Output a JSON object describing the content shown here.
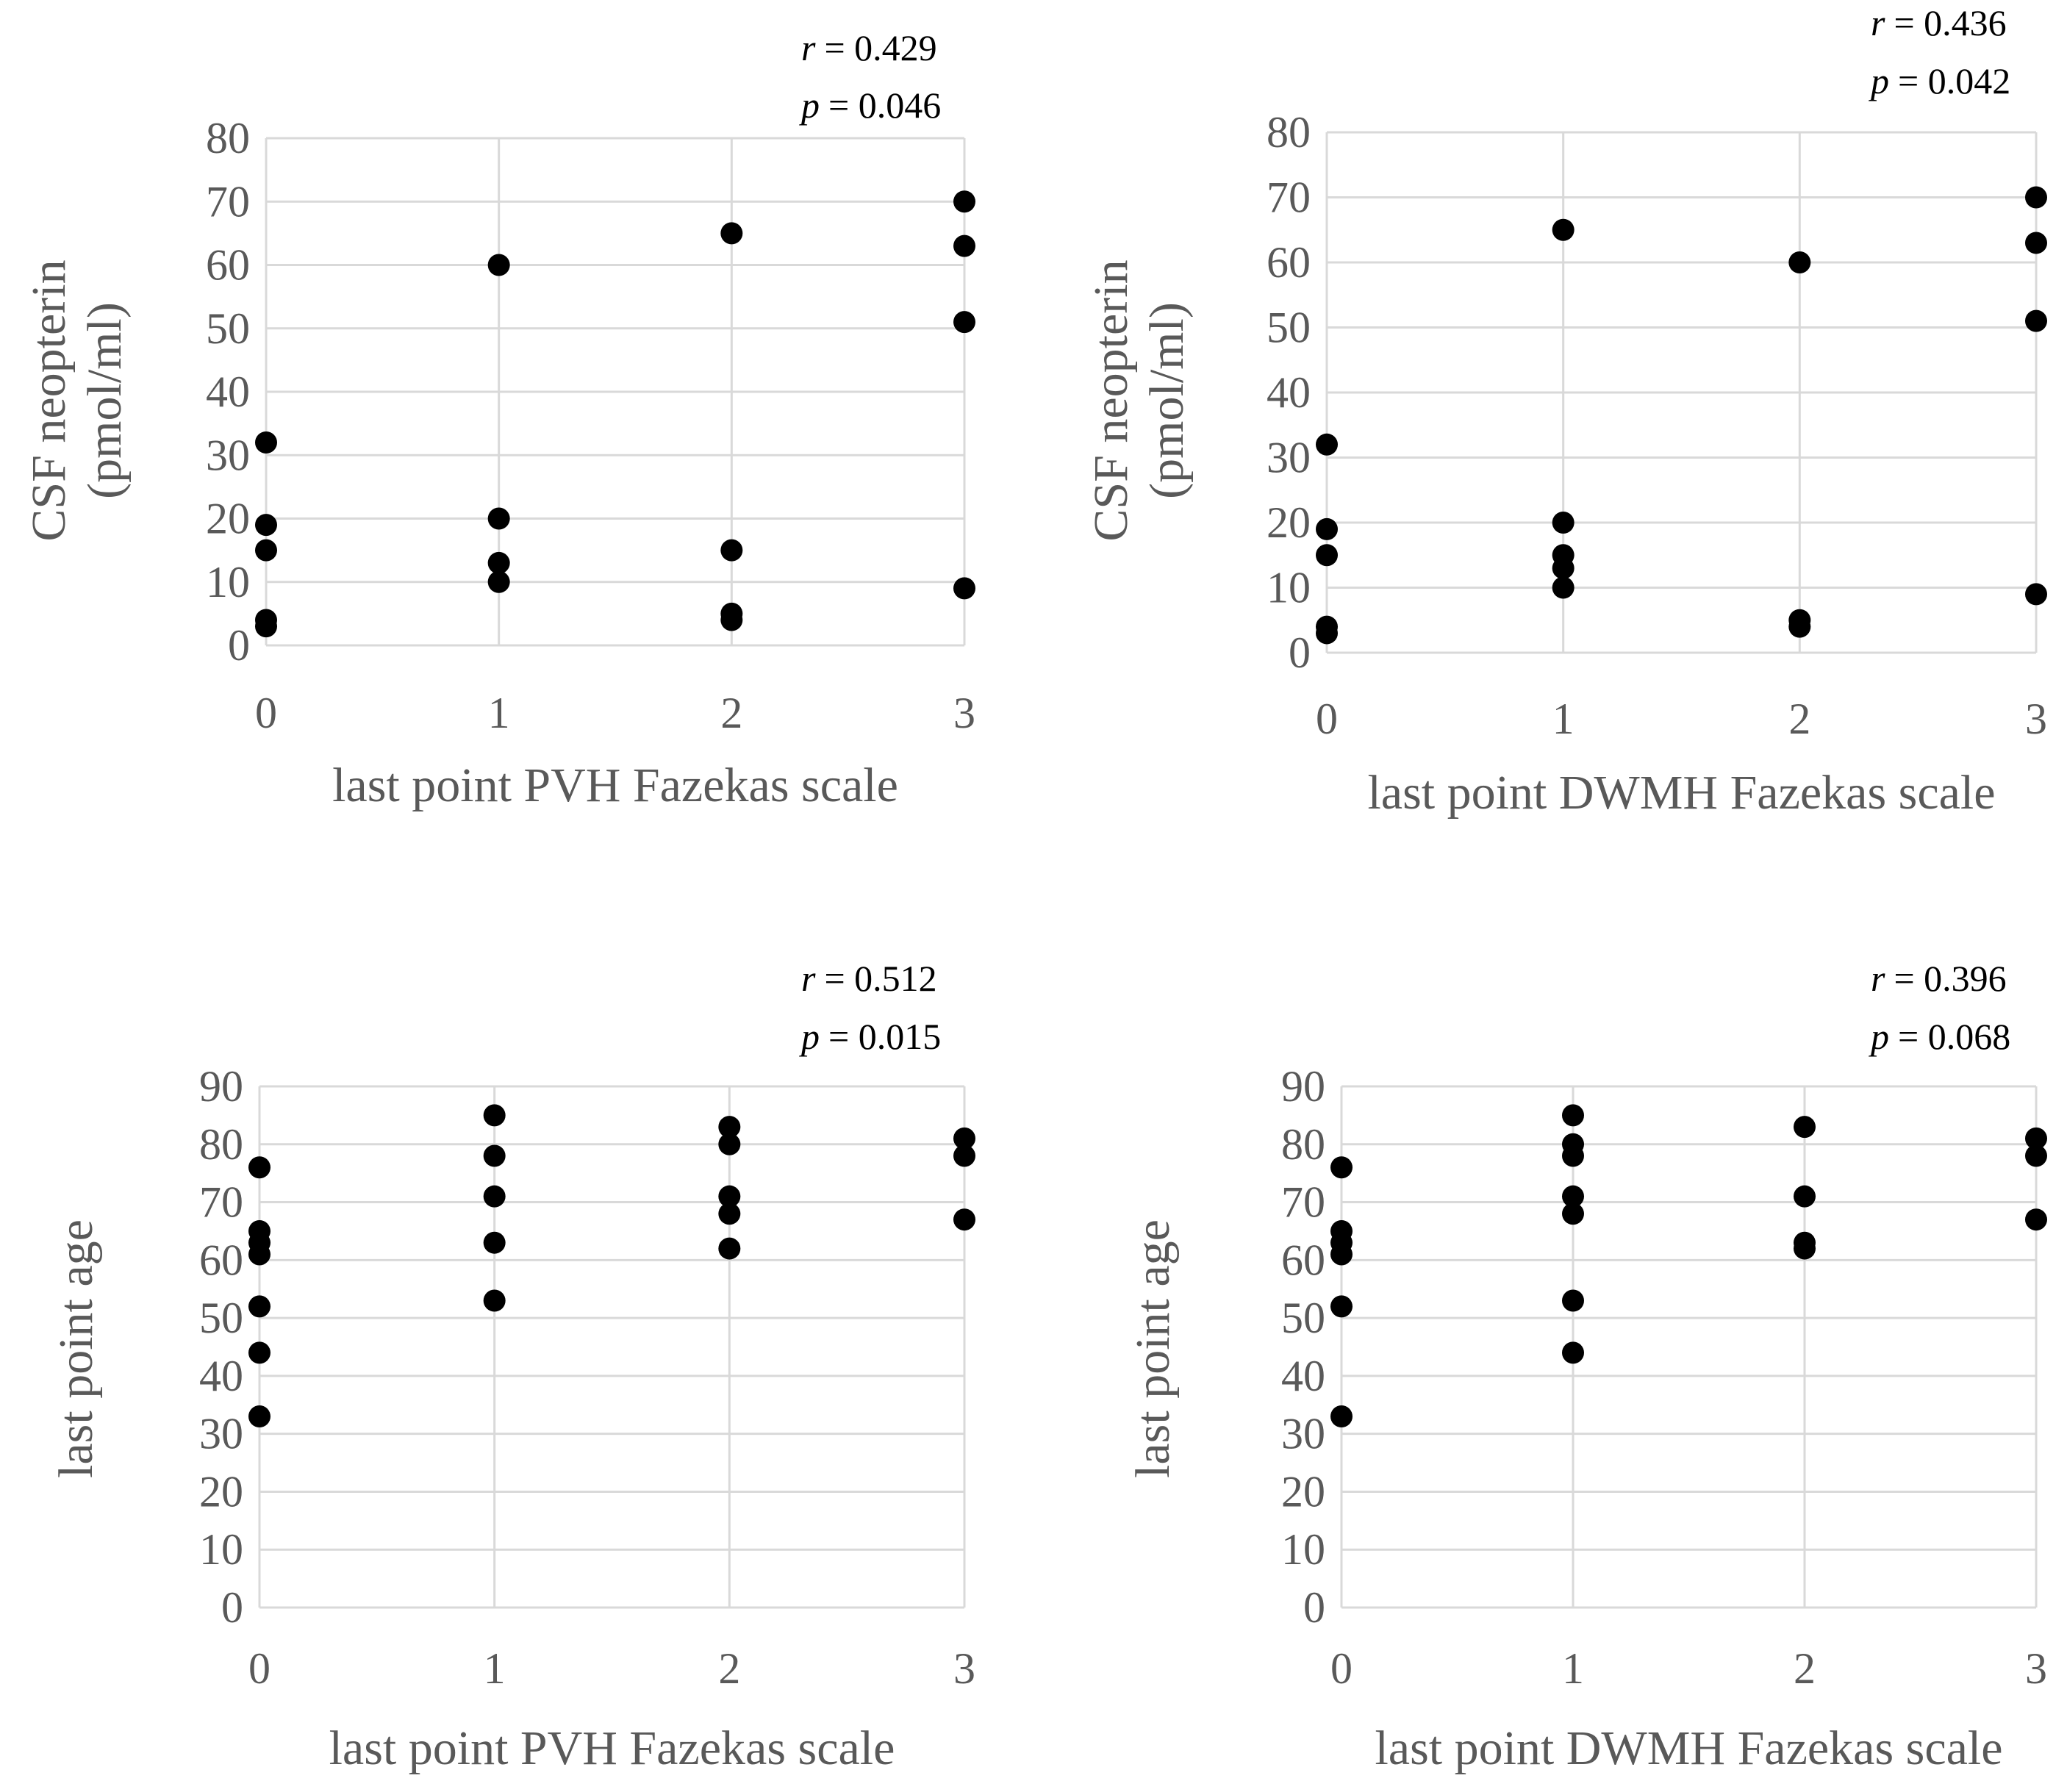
{
  "figure": {
    "panel_count": 4
  },
  "chart_data": [
    {
      "type": "scatter",
      "title": "",
      "xlabel": "last point PVH Fazekas scale",
      "ylabel": [
        "CSF neopterin",
        "(pmol/ml)"
      ],
      "xlim": [
        0,
        3
      ],
      "ylim": [
        0,
        80
      ],
      "x_ticks": [
        "0",
        "1",
        "2",
        "3"
      ],
      "y_ticks": [
        "0",
        "10",
        "20",
        "30",
        "40",
        "50",
        "60",
        "70",
        "80"
      ],
      "grid": true,
      "stats": {
        "r_symbol": "r",
        "r_value": "= 0.429",
        "p_symbol": "p",
        "p_value": "= 0.046"
      },
      "points": [
        {
          "x": 0,
          "y": 32
        },
        {
          "x": 0,
          "y": 19
        },
        {
          "x": 0,
          "y": 15
        },
        {
          "x": 0,
          "y": 4
        },
        {
          "x": 0,
          "y": 3
        },
        {
          "x": 1,
          "y": 60
        },
        {
          "x": 1,
          "y": 20
        },
        {
          "x": 1,
          "y": 13
        },
        {
          "x": 1,
          "y": 10
        },
        {
          "x": 2,
          "y": 65
        },
        {
          "x": 2,
          "y": 15
        },
        {
          "x": 2,
          "y": 5
        },
        {
          "x": 2,
          "y": 4
        },
        {
          "x": 3,
          "y": 70
        },
        {
          "x": 3,
          "y": 63
        },
        {
          "x": 3,
          "y": 51
        },
        {
          "x": 3,
          "y": 9
        }
      ]
    },
    {
      "type": "scatter",
      "title": "",
      "xlabel": "last point DWMH Fazekas scale",
      "ylabel": [
        "CSF neopterin",
        "(pmol/ml)"
      ],
      "xlim": [
        0,
        3
      ],
      "ylim": [
        0,
        80
      ],
      "x_ticks": [
        "0",
        "1",
        "2",
        "3"
      ],
      "y_ticks": [
        "0",
        "10",
        "20",
        "30",
        "40",
        "50",
        "60",
        "70",
        "80"
      ],
      "grid": true,
      "stats": {
        "r_symbol": "r",
        "r_value": "= 0.436",
        "p_symbol": "p",
        "p_value": "= 0.042"
      },
      "points": [
        {
          "x": 0,
          "y": 32
        },
        {
          "x": 0,
          "y": 19
        },
        {
          "x": 0,
          "y": 15
        },
        {
          "x": 0,
          "y": 4
        },
        {
          "x": 0,
          "y": 3
        },
        {
          "x": 1,
          "y": 65
        },
        {
          "x": 1,
          "y": 20
        },
        {
          "x": 1,
          "y": 15
        },
        {
          "x": 1,
          "y": 13
        },
        {
          "x": 1,
          "y": 10
        },
        {
          "x": 2,
          "y": 60
        },
        {
          "x": 2,
          "y": 5
        },
        {
          "x": 2,
          "y": 4
        },
        {
          "x": 3,
          "y": 70
        },
        {
          "x": 3,
          "y": 63
        },
        {
          "x": 3,
          "y": 51
        },
        {
          "x": 3,
          "y": 9
        }
      ]
    },
    {
      "type": "scatter",
      "title": "",
      "xlabel": "last point PVH Fazekas scale",
      "ylabel": [
        "last point age"
      ],
      "xlim": [
        0,
        3
      ],
      "ylim": [
        0,
        90
      ],
      "x_ticks": [
        "0",
        "1",
        "2",
        "3"
      ],
      "y_ticks": [
        "0",
        "10",
        "20",
        "30",
        "40",
        "50",
        "60",
        "70",
        "80",
        "90"
      ],
      "grid": true,
      "stats": {
        "r_symbol": "r",
        "r_value": "= 0.512",
        "p_symbol": "p",
        "p_value": "= 0.015"
      },
      "points": [
        {
          "x": 0,
          "y": 76
        },
        {
          "x": 0,
          "y": 65
        },
        {
          "x": 0,
          "y": 63
        },
        {
          "x": 0,
          "y": 61
        },
        {
          "x": 0,
          "y": 52
        },
        {
          "x": 0,
          "y": 44
        },
        {
          "x": 0,
          "y": 33
        },
        {
          "x": 1,
          "y": 85
        },
        {
          "x": 1,
          "y": 78
        },
        {
          "x": 1,
          "y": 71
        },
        {
          "x": 1,
          "y": 63
        },
        {
          "x": 1,
          "y": 53
        },
        {
          "x": 2,
          "y": 83
        },
        {
          "x": 2,
          "y": 80
        },
        {
          "x": 2,
          "y": 71
        },
        {
          "x": 2,
          "y": 68
        },
        {
          "x": 2,
          "y": 62
        },
        {
          "x": 3,
          "y": 81
        },
        {
          "x": 3,
          "y": 78
        },
        {
          "x": 3,
          "y": 67
        }
      ]
    },
    {
      "type": "scatter",
      "title": "",
      "xlabel": "last point DWMH Fazekas scale",
      "ylabel": [
        "last point age"
      ],
      "xlim": [
        0,
        3
      ],
      "ylim": [
        0,
        90
      ],
      "x_ticks": [
        "0",
        "1",
        "2",
        "3"
      ],
      "y_ticks": [
        "0",
        "10",
        "20",
        "30",
        "40",
        "50",
        "60",
        "70",
        "80",
        "90"
      ],
      "grid": true,
      "stats": {
        "r_symbol": "r",
        "r_value": "= 0.396",
        "p_symbol": "p",
        "p_value": "= 0.068"
      },
      "points": [
        {
          "x": 0,
          "y": 76
        },
        {
          "x": 0,
          "y": 65
        },
        {
          "x": 0,
          "y": 63
        },
        {
          "x": 0,
          "y": 61
        },
        {
          "x": 0,
          "y": 52
        },
        {
          "x": 0,
          "y": 33
        },
        {
          "x": 1,
          "y": 85
        },
        {
          "x": 1,
          "y": 80
        },
        {
          "x": 1,
          "y": 78
        },
        {
          "x": 1,
          "y": 71
        },
        {
          "x": 1,
          "y": 68
        },
        {
          "x": 1,
          "y": 53
        },
        {
          "x": 1,
          "y": 44
        },
        {
          "x": 2,
          "y": 83
        },
        {
          "x": 2,
          "y": 71
        },
        {
          "x": 2,
          "y": 63
        },
        {
          "x": 2,
          "y": 62
        },
        {
          "x": 3,
          "y": 81
        },
        {
          "x": 3,
          "y": 78
        },
        {
          "x": 3,
          "y": 67
        }
      ]
    }
  ]
}
